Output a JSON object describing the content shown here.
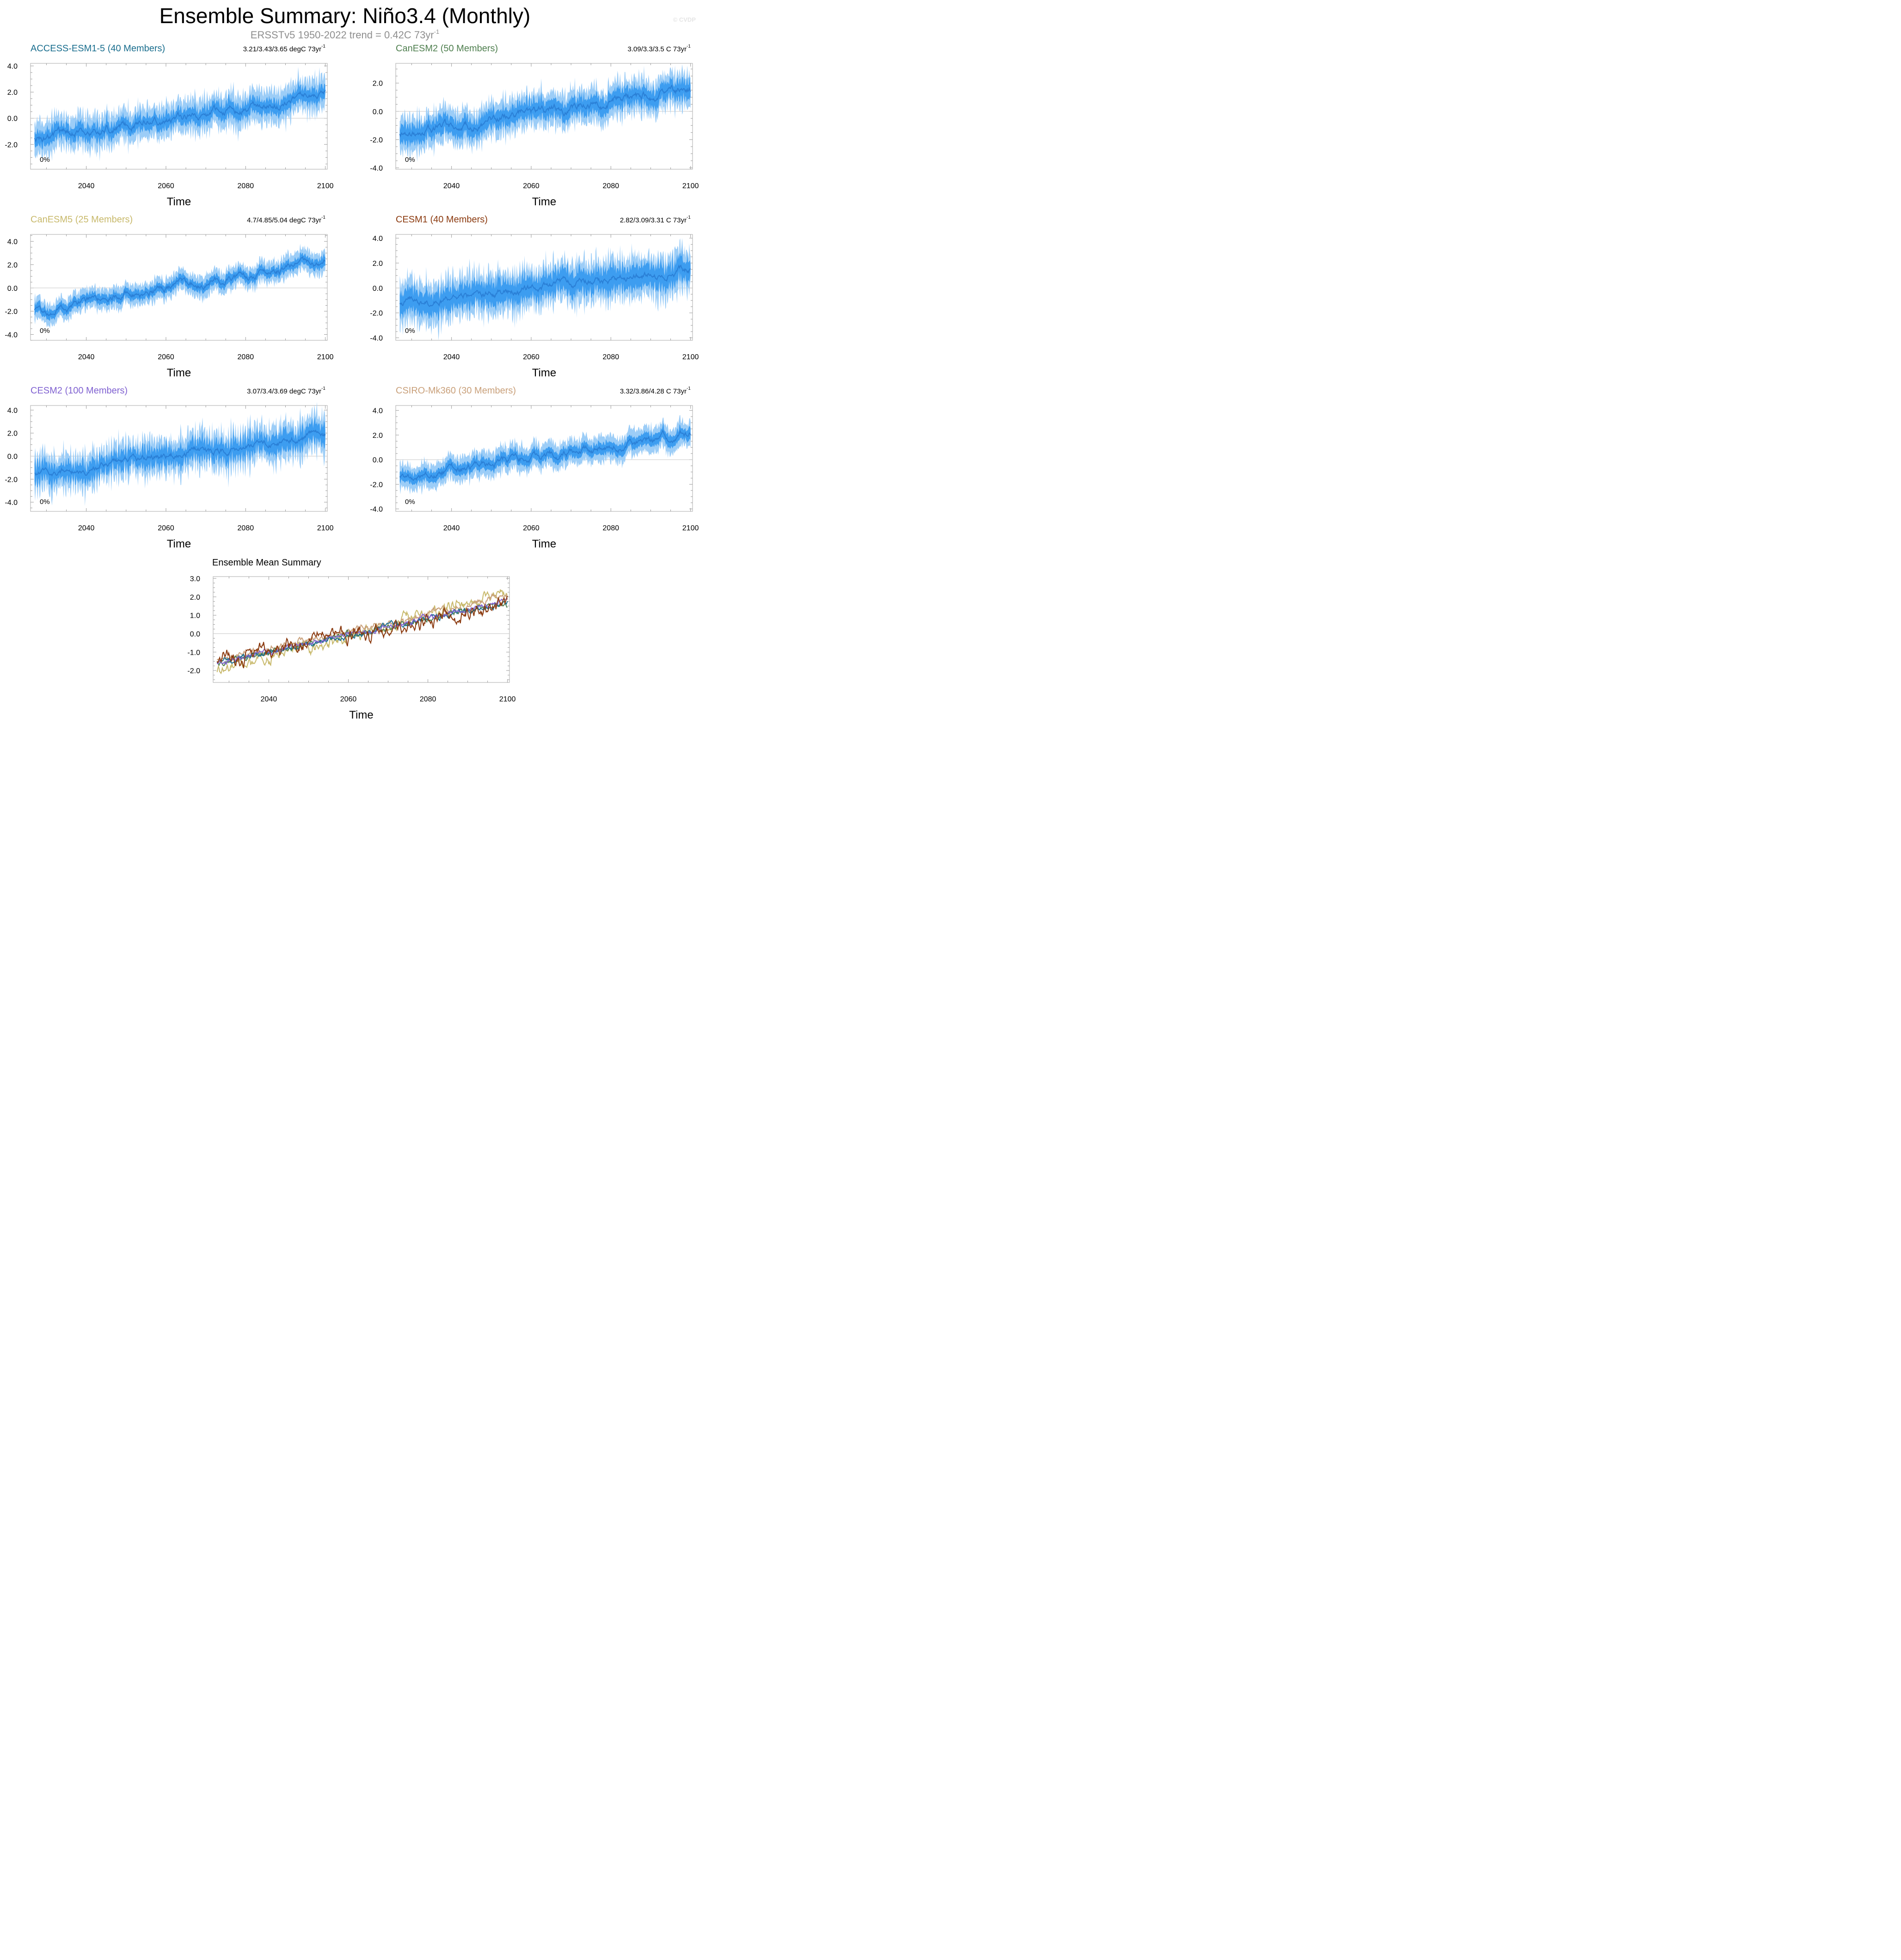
{
  "page": {
    "title": "Ensemble Summary: Niño3.4 (Monthly)",
    "subtitle_main": "ERSSTv5 1950-2022 trend = 0.42C 73yr",
    "subtitle_sup": "-1",
    "watermark": "© CVDP"
  },
  "chart_data": [
    {
      "type": "area",
      "title": "ACCESS-ESM1-5 (40 Members)",
      "title_color": "#1a6e8e",
      "trend_text": "3.21/3.43/3.65 degC 73yr",
      "trend_sup": "-1",
      "pct_label": "0%",
      "xlabel": "Time",
      "xlim": [
        2026,
        2100.5
      ],
      "ylim": [
        -3.9,
        4.2
      ],
      "xticks": [
        2040,
        2060,
        2080,
        2100
      ],
      "yticks": [
        -2.0,
        0.0,
        2.0,
        4.0
      ],
      "ytick_labels": [
        "-2.0",
        "0.0",
        "2.0",
        "4.0"
      ],
      "series": [
        {
          "role": "ensemble-mean",
          "start": -1.6,
          "end": 1.7
        },
        {
          "role": "inner-band-25-75",
          "halfwidth": 0.55,
          "seasonal_amplitude": 0.35
        },
        {
          "role": "outer-band-min-max",
          "halfwidth": 1.25,
          "seasonal_amplitude": 0.6
        }
      ]
    },
    {
      "type": "area",
      "title": "CanESM2 (50 Members)",
      "title_color": "#4f7f4f",
      "trend_text": "3.09/3.3/3.5 C 73yr",
      "trend_sup": "-1",
      "pct_label": "0%",
      "xlabel": "Time",
      "xlim": [
        2026,
        2100.5
      ],
      "ylim": [
        -4.1,
        3.4
      ],
      "xticks": [
        2040,
        2060,
        2080,
        2100
      ],
      "yticks": [
        -4.0,
        -2.0,
        0.0,
        2.0
      ],
      "ytick_labels": [
        "-4.0",
        "-2.0",
        "0.0",
        "2.0"
      ],
      "series": [
        {
          "role": "ensemble-mean",
          "start": -1.7,
          "end": 1.7
        },
        {
          "role": "inner-band-25-75",
          "halfwidth": 0.6,
          "seasonal_amplitude": 0.35
        },
        {
          "role": "outer-band-min-max",
          "halfwidth": 1.2,
          "seasonal_amplitude": 0.55
        }
      ]
    },
    {
      "type": "area",
      "title": "CanESM5 (25 Members)",
      "title_color": "#c8b96b",
      "trend_text": "4.7/4.85/5.04 degC 73yr",
      "trend_sup": "-1",
      "pct_label": "0%",
      "xlabel": "Time",
      "xlim": [
        2026,
        2100.5
      ],
      "ylim": [
        -4.5,
        4.6
      ],
      "xticks": [
        2040,
        2060,
        2080,
        2100
      ],
      "yticks": [
        -4.0,
        -2.0,
        0.0,
        2.0,
        4.0
      ],
      "ytick_labels": [
        "-4.0",
        "-2.0",
        "0.0",
        "2.0",
        "4.0"
      ],
      "series": [
        {
          "role": "ensemble-mean",
          "start": -2.0,
          "end": 2.2
        },
        {
          "role": "inner-band-25-75",
          "halfwidth": 0.4,
          "seasonal_amplitude": 0.15
        },
        {
          "role": "outer-band-min-max",
          "halfwidth": 0.9,
          "seasonal_amplitude": 0.3
        }
      ]
    },
    {
      "type": "area",
      "title": "CESM1 (40 Members)",
      "title_color": "#8b3a0f",
      "trend_text": "2.82/3.09/3.31 C 73yr",
      "trend_sup": "-1",
      "pct_label": "0%",
      "xlabel": "Time",
      "xlim": [
        2026,
        2100.5
      ],
      "ylim": [
        -4.2,
        4.3
      ],
      "xticks": [
        2040,
        2060,
        2080,
        2100
      ],
      "yticks": [
        -4.0,
        -2.0,
        0.0,
        2.0,
        4.0
      ],
      "ytick_labels": [
        "-4.0",
        "-2.0",
        "0.0",
        "2.0",
        "4.0"
      ],
      "series": [
        {
          "role": "ensemble-mean",
          "start": -1.4,
          "end": 1.5
        },
        {
          "role": "inner-band-25-75",
          "halfwidth": 0.85,
          "seasonal_amplitude": 0.6
        },
        {
          "role": "outer-band-min-max",
          "halfwidth": 1.6,
          "seasonal_amplitude": 0.9
        }
      ]
    },
    {
      "type": "area",
      "title": "CESM2 (100 Members)",
      "title_color": "#8062d1",
      "trend_text": "3.07/3.4/3.69 degC 73yr",
      "trend_sup": "-1",
      "pct_label": "0%",
      "xlabel": "Time",
      "xlim": [
        2026,
        2100.5
      ],
      "ylim": [
        -4.8,
        4.4
      ],
      "xticks": [
        2040,
        2060,
        2080,
        2100
      ],
      "yticks": [
        -4.0,
        -2.0,
        0.0,
        2.0,
        4.0
      ],
      "ytick_labels": [
        "-4.0",
        "-2.0",
        "0.0",
        "2.0",
        "4.0"
      ],
      "series": [
        {
          "role": "ensemble-mean",
          "start": -1.6,
          "end": 1.8
        },
        {
          "role": "inner-band-25-75",
          "halfwidth": 0.75,
          "seasonal_amplitude": 0.65
        },
        {
          "role": "outer-band-min-max",
          "halfwidth": 1.5,
          "seasonal_amplitude": 0.95
        }
      ]
    },
    {
      "type": "area",
      "title": "CSIRO-Mk360 (30 Members)",
      "title_color": "#c9a07a",
      "trend_text": "3.32/3.86/4.28 C 73yr",
      "trend_sup": "-1",
      "pct_label": "0%",
      "xlabel": "Time",
      "xlim": [
        2026,
        2100.5
      ],
      "ylim": [
        -4.2,
        4.4
      ],
      "xticks": [
        2040,
        2060,
        2080,
        2100
      ],
      "yticks": [
        -4.0,
        -2.0,
        0.0,
        2.0,
        4.0
      ],
      "ytick_labels": [
        "-4.0",
        "-2.0",
        "0.0",
        "2.0",
        "4.0"
      ],
      "series": [
        {
          "role": "ensemble-mean",
          "start": -1.5,
          "end": 2.1
        },
        {
          "role": "inner-band-25-75",
          "halfwidth": 0.45,
          "seasonal_amplitude": 0.15
        },
        {
          "role": "outer-band-min-max",
          "halfwidth": 1.0,
          "seasonal_amplitude": 0.3
        }
      ]
    },
    {
      "type": "line",
      "title": "Ensemble Mean Summary",
      "title_color": "#000000",
      "xlabel": "Time",
      "xlim": [
        2026,
        2100.5
      ],
      "ylim": [
        -2.65,
        3.1
      ],
      "xticks": [
        2040,
        2060,
        2080,
        2100
      ],
      "yticks": [
        -2.0,
        -1.0,
        0.0,
        1.0,
        2.0,
        3.0
      ],
      "ytick_labels": [
        "-2.0",
        "-1.0",
        "0.0",
        "1.0",
        "2.0",
        "3.0"
      ],
      "series": [
        {
          "model": "CanESM5",
          "color": "#c8b96b",
          "start": -2.1,
          "end": 2.3,
          "noise": 0.25
        },
        {
          "model": "CSIRO-Mk360",
          "color": "#c9a07a",
          "start": -1.5,
          "end": 2.0,
          "noise": 0.15
        },
        {
          "model": "CanESM2",
          "color": "#4f7f4f",
          "start": -1.6,
          "end": 1.7,
          "noise": 0.12
        },
        {
          "model": "ACCESS-ESM1-5",
          "color": "#1a6e8e",
          "start": -1.6,
          "end": 1.7,
          "noise": 0.12
        },
        {
          "model": "CESM2",
          "color": "#8062d1",
          "start": -1.6,
          "end": 1.8,
          "noise": 0.1
        },
        {
          "model": "CESM1",
          "color": "#8b3a0f",
          "start": -1.5,
          "end": 1.5,
          "noise": 0.28
        }
      ]
    }
  ]
}
